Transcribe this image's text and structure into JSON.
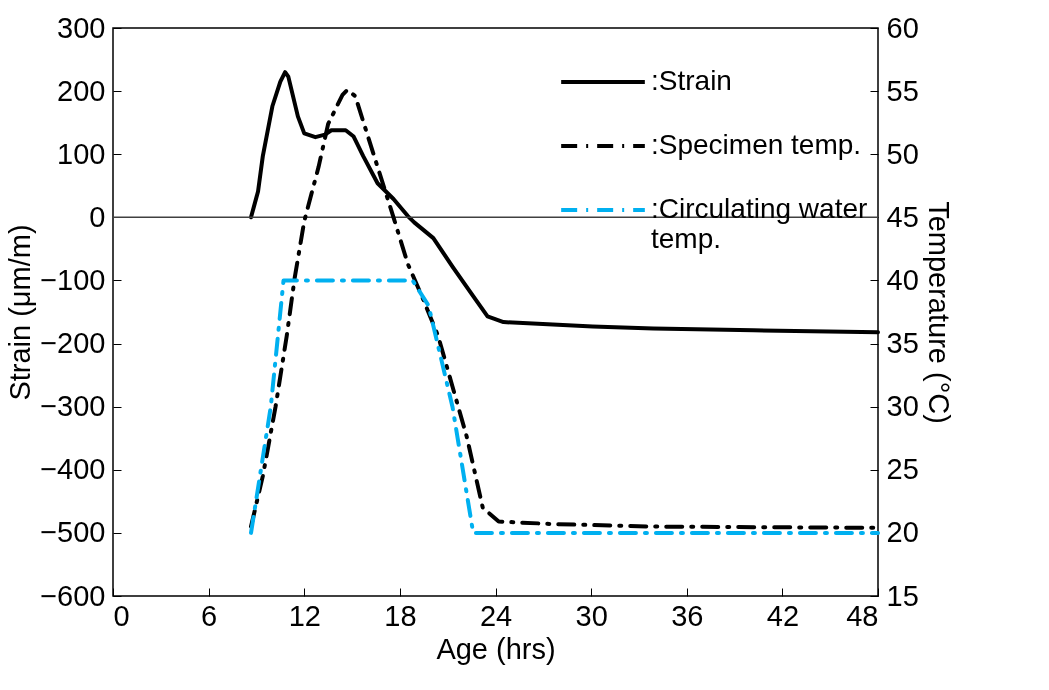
{
  "chart_data": {
    "type": "line",
    "xlabel": "Age (hrs)",
    "ylabel": "Strain (μm/m)",
    "y2label": "Temperature (°C)",
    "xlim": [
      0,
      48
    ],
    "xticks": [
      0,
      6,
      12,
      18,
      24,
      30,
      36,
      42,
      48
    ],
    "ylim": [
      -600,
      300
    ],
    "yticks": [
      -600,
      -500,
      -400,
      -300,
      -200,
      -100,
      0,
      100,
      200,
      300
    ],
    "y2lim": [
      15,
      60
    ],
    "y2ticks": [
      15,
      20,
      25,
      30,
      35,
      40,
      45,
      50,
      55,
      60
    ],
    "grid": false,
    "legend": "top right",
    "ref_lines": [
      {
        "axis": "y",
        "value": 0,
        "color": "#404040"
      }
    ],
    "series": [
      {
        "name": ":Strain",
        "color": "#000000",
        "line_style": "solid",
        "x": [
          8.66,
          9.1,
          9.4,
          10.0,
          10.5,
          10.8,
          11.0,
          11.6,
          12.0,
          12.7,
          13.3,
          13.7,
          14.6,
          15.1,
          15.7,
          16.6,
          17.6,
          18.5,
          18.9,
          20.1,
          21.3,
          22.6,
          23.5,
          24.5,
          27.6,
          30.1,
          33.9,
          40.2,
          48
        ],
        "values": [
          0,
          41,
          97,
          176,
          215,
          230,
          223,
          160,
          133,
          127,
          131,
          138,
          138,
          128,
          97,
          54,
          29,
          2,
          -8,
          -33,
          -78,
          -125,
          -157,
          -166,
          -170,
          -173,
          -176,
          -179,
          -182
        ]
      },
      {
        "name": ":Specimen temp.",
        "color": "#000000",
        "line_style": "dashed",
        "axis": "y2",
        "x": [
          8.66,
          9.4,
          10.2,
          10.9,
          11.4,
          12.0,
          12.9,
          13.5,
          14.4,
          14.7,
          15.2,
          15.7,
          16.6,
          17.6,
          18.5,
          19.4,
          20.4,
          21.3,
          22.2,
          23.2,
          24.2,
          27.6,
          33.9,
          48
        ],
        "values": [
          20.5,
          24.5,
          30,
          35.6,
          40.2,
          44.7,
          49,
          52.4,
          54.7,
          55.1,
          54.6,
          52.6,
          49,
          45,
          41.3,
          38.7,
          35.6,
          31.6,
          27.6,
          22,
          20.9,
          20.7,
          20.5,
          20.4
        ]
      },
      {
        "name": ":Circulating water temp.",
        "color": "#00b0f0",
        "line_style": "dashed",
        "axis": "y2",
        "x": [
          8.66,
          9.9,
          10.7,
          18.8,
          19.8,
          21.3,
          22.6,
          48
        ],
        "values": [
          20,
          30,
          40,
          40,
          38,
          30,
          20,
          20
        ]
      }
    ]
  }
}
